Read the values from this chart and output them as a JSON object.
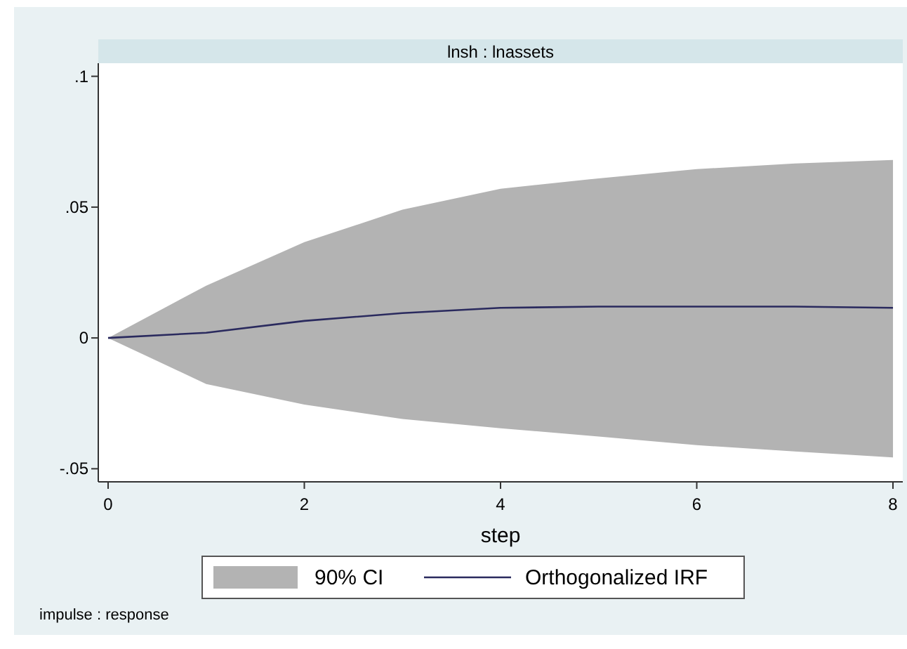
{
  "chart_data": {
    "type": "line",
    "title": "lnsh : lnassets",
    "xlabel": "step",
    "annotations": [
      "90% CI",
      "impulse : response"
    ],
    "x": [
      0,
      1,
      2,
      3,
      4,
      5,
      6,
      7,
      8
    ],
    "series": [
      {
        "name": "Orthogonalized IRF",
        "color": "#2a2a5e",
        "values": [
          0,
          0.002,
          0.0065,
          0.0095,
          0.0115,
          0.012,
          0.012,
          0.012,
          0.0115
        ],
        "lower": [
          0,
          -0.0176,
          -0.0255,
          -0.031,
          -0.0345,
          -0.0377,
          -0.041,
          -0.0434,
          -0.0457
        ],
        "upper": [
          0,
          0.02,
          0.0366,
          0.049,
          0.057,
          0.061,
          0.0645,
          0.0667,
          0.068
        ]
      }
    ],
    "xlim": [
      -0.1,
      8.1
    ],
    "ylim": [
      -0.055,
      0.105
    ],
    "xticks": [
      0,
      2,
      4,
      6,
      8
    ],
    "yticks": [
      {
        "value": -0.05,
        "label": "-.05"
      },
      {
        "value": 0,
        "label": "0"
      },
      {
        "value": 0.05,
        "label": ".05"
      },
      {
        "value": 0.1,
        "label": ".1"
      }
    ],
    "grid": false,
    "legend": "bottom",
    "marker": "none",
    "line_style": "solid"
  }
}
